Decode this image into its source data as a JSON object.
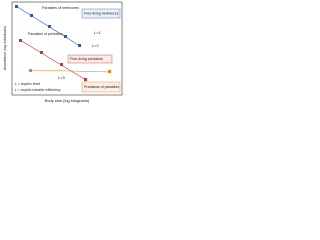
{
  "axes": {
    "y_label": "Abundance (log individuals)",
    "x_label": "Body size (log kilograms)"
  },
  "labels": {
    "parasites_herbivores": "Parasites of herbivores",
    "free_herbivores": "Free-living herbivores",
    "parasites_predators": "Parasites of predators",
    "free_predators": "Free-living predators",
    "predators_parasites": "Predators of parasites"
  },
  "levels": [
    "L=1",
    "L=2",
    "L=3"
  ],
  "legend": [
    "L = trophic level",
    "ε = trophic transfer efficiency"
  ]
}
